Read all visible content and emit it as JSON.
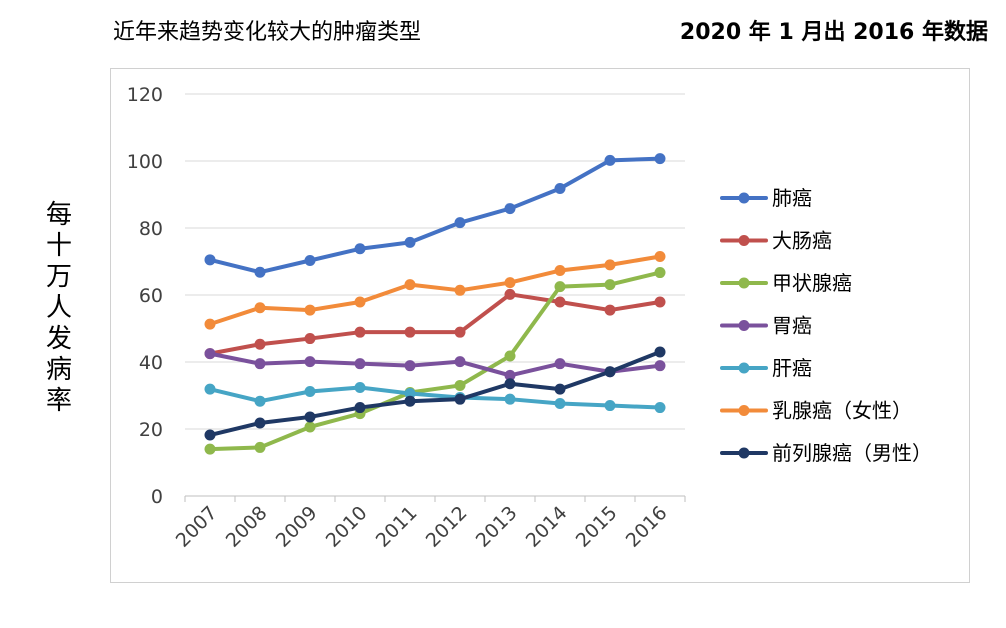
{
  "header": {
    "title": "近年来趋势变化较大的肿瘤类型",
    "note": "2020 年 1 月出 2016 年数据"
  },
  "chart_data": {
    "type": "line",
    "title": "近年来趋势变化较大的肿瘤类型",
    "ylabel": "每十万人发病率",
    "xlabel": "",
    "ylim": [
      0,
      120
    ],
    "yticks": [
      0,
      20,
      40,
      60,
      80,
      100,
      120
    ],
    "grid": true,
    "legend_position": "right",
    "x": [
      "2007",
      "2008",
      "2009",
      "2010",
      "2011",
      "2012",
      "2013",
      "2014",
      "2015",
      "2016"
    ],
    "series": [
      {
        "name": "肺癌",
        "color": "#4472c4",
        "values": [
          70.5,
          66.8,
          70.3,
          73.8,
          75.7,
          81.6,
          85.8,
          91.8,
          100.2,
          100.7
        ]
      },
      {
        "name": "大肠癌",
        "color": "#c0504d",
        "values": [
          42.5,
          45.3,
          47.0,
          48.9,
          48.9,
          48.9,
          60.2,
          57.9,
          55.5,
          57.9
        ]
      },
      {
        "name": "甲状腺癌",
        "color": "#8fb84c",
        "values": [
          14.0,
          14.5,
          20.6,
          24.6,
          30.9,
          33.0,
          41.8,
          62.5,
          63.1,
          66.7
        ]
      },
      {
        "name": "胃癌",
        "color": "#7a519c",
        "values": [
          42.5,
          39.5,
          40.1,
          39.5,
          38.9,
          40.1,
          36.0,
          39.5,
          37.1,
          38.9
        ]
      },
      {
        "name": "肝癌",
        "color": "#46a5c5",
        "values": [
          31.9,
          28.3,
          31.2,
          32.4,
          30.6,
          29.4,
          28.9,
          27.6,
          27.0,
          26.4
        ]
      },
      {
        "name": "乳腺癌（女性）",
        "color": "#f28b3a",
        "values": [
          51.3,
          56.2,
          55.5,
          57.9,
          63.1,
          61.4,
          63.7,
          67.3,
          69.0,
          71.5
        ]
      },
      {
        "name": "前列腺癌（男性）",
        "color": "#1f3864",
        "values": [
          18.2,
          21.8,
          23.6,
          26.4,
          28.3,
          28.9,
          33.5,
          31.9,
          37.1,
          43.0
        ]
      }
    ]
  }
}
